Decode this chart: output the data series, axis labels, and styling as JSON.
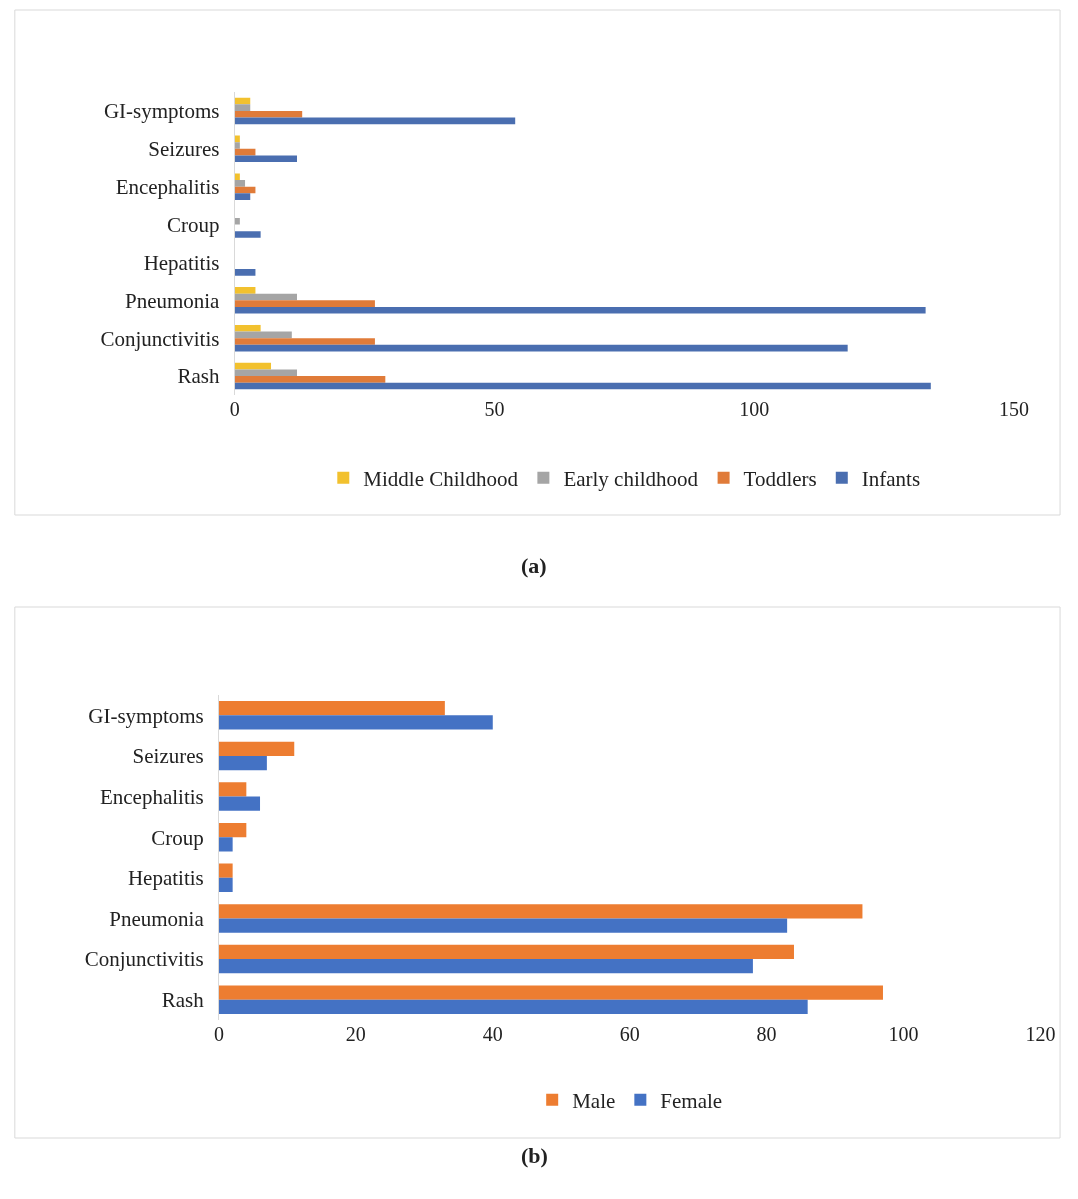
{
  "chart_data": [
    {
      "type": "bar",
      "orientation": "horizontal",
      "categories": [
        "GI-symptoms",
        "Seizures",
        "Encephalitis",
        "Croup",
        "Hepatitis",
        "Pneumonia",
        "Conjunctivitis",
        "Rash"
      ],
      "series": [
        {
          "name": "Middle Childhood",
          "color": "#f2c12e",
          "values": [
            3,
            1,
            1,
            0,
            0,
            4,
            5,
            7
          ]
        },
        {
          "name": "Early childhood",
          "color": "#a5a5a5",
          "values": [
            3,
            1,
            2,
            1,
            0,
            12,
            11,
            12
          ]
        },
        {
          "name": "Toddlers",
          "color": "#e07b39",
          "values": [
            13,
            4,
            4,
            0,
            0,
            27,
            27,
            29
          ]
        },
        {
          "name": "Infants",
          "color": "#4a6eb0",
          "values": [
            54,
            12,
            3,
            5,
            4,
            133,
            118,
            134
          ]
        }
      ],
      "xlim": [
        0,
        150
      ],
      "xticks": [
        0,
        50,
        100,
        150
      ],
      "legend": "bottom",
      "annotations": [
        "(a)"
      ]
    },
    {
      "type": "bar",
      "orientation": "horizontal",
      "categories": [
        "GI-symptoms",
        "Seizures",
        "Encephalitis",
        "Croup",
        "Hepatitis",
        "Pneumonia",
        "Conjunctivitis",
        "Rash"
      ],
      "series": [
        {
          "name": "Male",
          "color": "#ed7d31",
          "values": [
            33,
            11,
            4,
            4,
            2,
            94,
            84,
            97
          ]
        },
        {
          "name": "Female",
          "color": "#4472c4",
          "values": [
            40,
            7,
            6,
            2,
            2,
            83,
            78,
            86
          ]
        }
      ],
      "xlim": [
        0,
        120
      ],
      "xticks": [
        0,
        20,
        40,
        60,
        80,
        100,
        120
      ],
      "legend": "bottom",
      "annotations": [
        "(b)"
      ]
    }
  ]
}
